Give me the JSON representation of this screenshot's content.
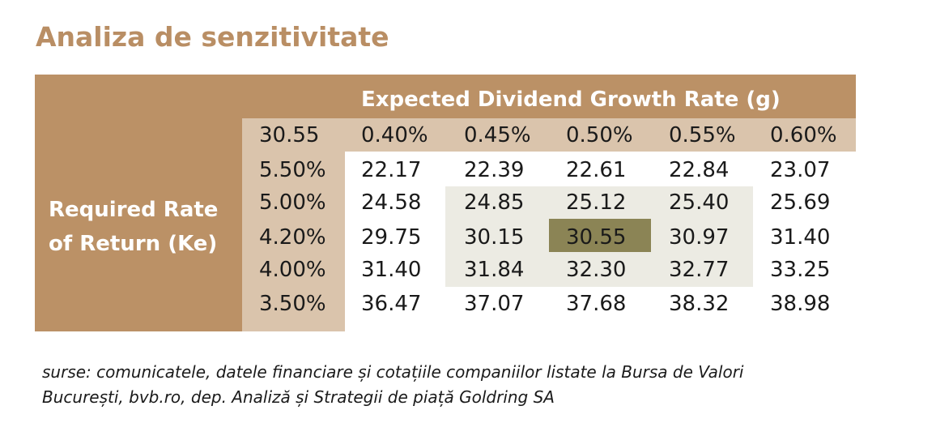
{
  "title": "Analiza de senzitivitate",
  "table": {
    "column_header": "Expected Dividend Growth Rate (g)",
    "row_header_line1": "Required Rate",
    "row_header_line2": "of Return (Ke)",
    "corner_value": "30.55",
    "growth_rates": [
      "0.40%",
      "0.45%",
      "0.50%",
      "0.55%",
      "0.60%"
    ],
    "rows": [
      {
        "ke": "5.50%",
        "values": [
          "22.17",
          "22.39",
          "22.61",
          "22.84",
          "23.07"
        ]
      },
      {
        "ke": "5.00%",
        "values": [
          "24.58",
          "24.85",
          "25.12",
          "25.40",
          "25.69"
        ]
      },
      {
        "ke": "4.20%",
        "values": [
          "29.75",
          "30.15",
          "30.55",
          "30.97",
          "31.40"
        ]
      },
      {
        "ke": "4.00%",
        "values": [
          "31.40",
          "31.84",
          "32.30",
          "32.77",
          "33.25"
        ]
      },
      {
        "ke": "3.50%",
        "values": [
          "36.47",
          "37.07",
          "37.68",
          "38.32",
          "38.98"
        ]
      }
    ]
  },
  "source": {
    "line1": "surse: comunicatele, datele financiare și cotațiile companiilor listate la Bursa de Valori",
    "line2": "București, bvb.ro, dep. Analiză și Strategii de piață Goldring SA"
  },
  "colors": {
    "title": "#b98e64",
    "brown": "#bb9166",
    "tan": "#dac4ac",
    "light_grey": "#ecebe3",
    "olive_highlight": "#8b8455"
  }
}
